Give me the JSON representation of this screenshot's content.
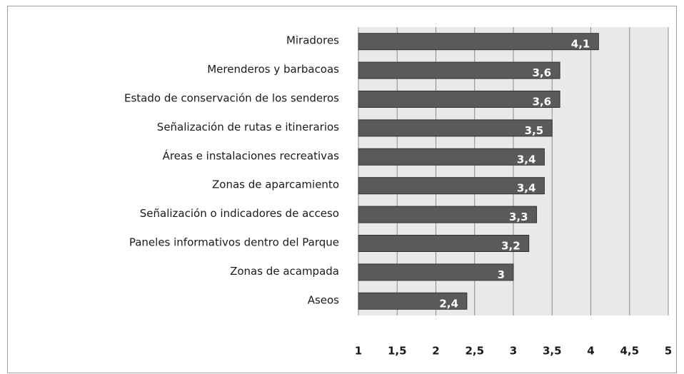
{
  "chart_data": {
    "type": "bar",
    "orientation": "horizontal",
    "categories": [
      "Miradores",
      "Merenderos y barbacoas",
      "Estado de conservación  de los senderos",
      "Señalización  de rutas e itinerarios",
      "Áreas e instalaciones  recreativas",
      "Zonas de aparcamiento",
      "Señalización  o indicadores de acceso",
      "Paneles informativos  dentro del Parque",
      "Zonas de acampada",
      "Aseos"
    ],
    "values": [
      4.1,
      3.6,
      3.6,
      3.5,
      3.4,
      3.4,
      3.3,
      3.2,
      3,
      2.4
    ],
    "value_labels": [
      "4,1",
      "3,6",
      "3,6",
      "3,5",
      "3,4",
      "3,4",
      "3,3",
      "3,2",
      "3",
      "2,4"
    ],
    "color": "#5a5a5a",
    "xlim": [
      1,
      5
    ],
    "xticks": [
      1,
      {
        "value": 1.5,
        "label": "1,5"
      },
      2,
      {
        "value": 2.5,
        "label": "2,5"
      },
      3,
      {
        "value": 3.5,
        "label": "3,5"
      },
      4,
      {
        "value": 4.5,
        "label": "4,5"
      },
      5
    ],
    "grid": true
  }
}
